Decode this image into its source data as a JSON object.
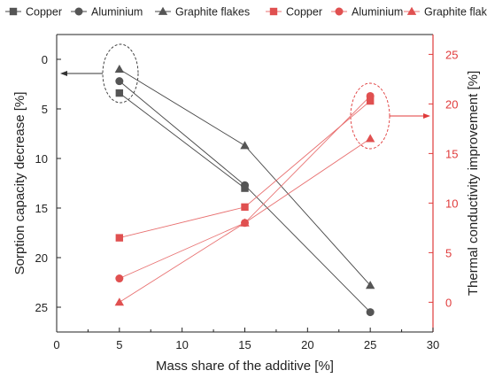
{
  "chart_data": {
    "type": "line",
    "xlabel": "Mass share of the additive [%]",
    "ylabel_left": "Sorption capacity decrease [%]",
    "ylabel_right": "Thermal conductivity improvement [%]",
    "x_ticks": [
      "0",
      "5",
      "10",
      "15",
      "20",
      "25",
      "30"
    ],
    "y_left_ticks": [
      "0",
      "5",
      "10",
      "15",
      "20",
      "25"
    ],
    "y_right_ticks": [
      "0",
      "5",
      "10",
      "15",
      "20",
      "25"
    ],
    "xlim": [
      0,
      30
    ],
    "ylim_left": [
      27.5,
      -2.5
    ],
    "left_axis_inverted": true,
    "ylim_right": [
      -3,
      27
    ],
    "grid": false,
    "legend_placement": "top",
    "colors": {
      "left": "#3a3a3a",
      "right": "#e03b3b"
    },
    "series": [
      {
        "name": "Copper",
        "axis": "left",
        "marker": "square",
        "x": [
          5,
          15,
          25
        ],
        "y": [
          3.4,
          13.0,
          null
        ]
      },
      {
        "name": "Aluminium",
        "axis": "left",
        "marker": "circle",
        "x": [
          5,
          15,
          25
        ],
        "y": [
          2.2,
          12.7,
          25.5
        ]
      },
      {
        "name": "Graphite flakes",
        "axis": "left",
        "marker": "triangle",
        "x": [
          5,
          15,
          25
        ],
        "y": [
          1.0,
          8.7,
          22.8
        ]
      },
      {
        "name": "Copper",
        "axis": "right",
        "marker": "square",
        "x": [
          5,
          15,
          25
        ],
        "y": [
          6.5,
          9.6,
          20.3
        ]
      },
      {
        "name": "Aluminium",
        "axis": "right",
        "marker": "circle",
        "x": [
          5,
          15,
          25
        ],
        "y": [
          2.4,
          8.0,
          20.8
        ]
      },
      {
        "name": "Graphite flakes",
        "axis": "right",
        "marker": "triangle",
        "x": [
          5,
          15,
          25
        ],
        "y": [
          0.0,
          8.0,
          16.5
        ]
      }
    ]
  }
}
